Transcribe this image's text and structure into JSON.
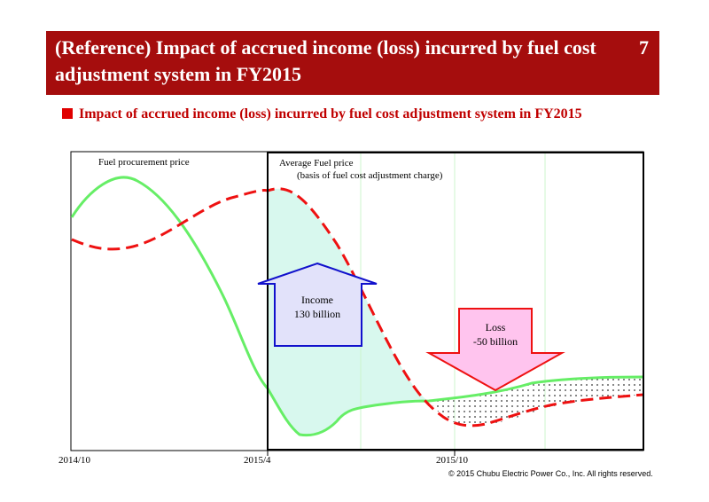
{
  "header": {
    "title": "(Reference) Impact of accrued income (loss) incurred by fuel cost adjustment system in FY2015",
    "page_number": "7"
  },
  "subtitle": "Impact of accrued income (loss) incurred by fuel cost adjustment system in FY2015",
  "diagram": {
    "fuel_procurement_label": "Fuel procurement price",
    "average_fuel_label_1": "Average Fuel price",
    "average_fuel_label_2": "(basis of fuel cost adjustment charge)",
    "income_label_1": "Income",
    "income_label_2": "130 billion",
    "loss_label_1": "Loss",
    "loss_label_2": "-50 billion",
    "x_axis_labels": [
      "2014/10",
      "2015/4",
      "2015/10"
    ]
  },
  "colors": {
    "title_bg": "#a50d0d",
    "procurement_line": "#66ee66",
    "average_line": "#ee1111",
    "income_fill": "#d8f8ee",
    "income_arrow_fill": "#e2e2fa",
    "income_arrow_stroke": "#1111cc",
    "loss_arrow_fill": "#ffc4ee",
    "loss_arrow_stroke": "#ee1111"
  },
  "copyright": "© 2015 Chubu Electric Power Co., Inc. All rights reserved."
}
